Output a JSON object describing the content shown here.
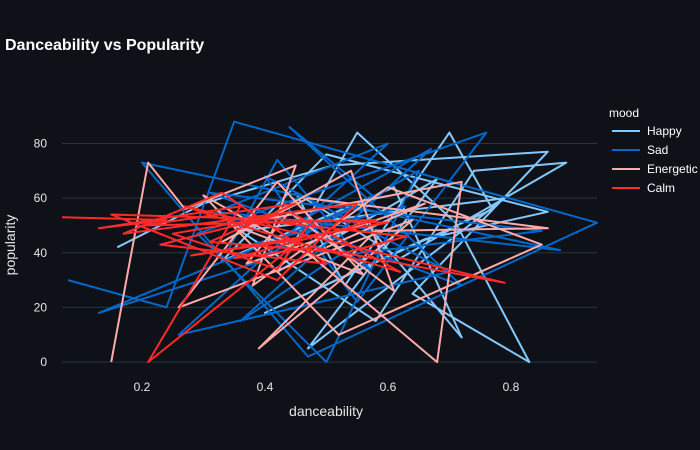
{
  "chart_data": {
    "type": "line",
    "title": "Danceability vs Popularity",
    "xlabel": "danceability",
    "ylabel": "popularity",
    "xlim": [
      0.07,
      0.94
    ],
    "ylim": [
      -4,
      93
    ],
    "x_ticks": [
      "0.2",
      "0.4",
      "0.6",
      "0.8"
    ],
    "y_ticks": [
      "0",
      "20",
      "40",
      "60",
      "80"
    ],
    "grid": true,
    "legend": {
      "title": "mood",
      "placement": "right"
    },
    "series": [
      {
        "name": "Happy",
        "color": "#83c9ff",
        "points": [
          [
            0.16,
            42
          ],
          [
            0.3,
            58
          ],
          [
            0.51,
            72
          ],
          [
            0.86,
            77
          ],
          [
            0.64,
            25
          ],
          [
            0.83,
            0
          ],
          [
            0.71,
            51
          ],
          [
            0.55,
            84
          ],
          [
            0.42,
            33
          ],
          [
            0.68,
            67
          ],
          [
            0.47,
            5
          ],
          [
            0.79,
            60
          ],
          [
            0.36,
            48
          ],
          [
            0.58,
            15
          ],
          [
            0.74,
            70
          ],
          [
            0.89,
            73
          ],
          [
            0.62,
            38
          ],
          [
            0.45,
            62
          ],
          [
            0.53,
            28
          ],
          [
            0.7,
            84
          ],
          [
            0.77,
            56
          ],
          [
            0.4,
            18
          ],
          [
            0.66,
            45
          ],
          [
            0.86,
            55
          ],
          [
            0.5,
            76
          ],
          [
            0.33,
            37
          ],
          [
            0.61,
            64
          ],
          [
            0.72,
            9
          ],
          [
            0.56,
            52
          ],
          [
            0.48,
            41
          ]
        ]
      },
      {
        "name": "Sad",
        "color": "#0068c9",
        "points": [
          [
            0.08,
            30
          ],
          [
            0.24,
            20
          ],
          [
            0.35,
            88
          ],
          [
            0.94,
            51
          ],
          [
            0.47,
            2
          ],
          [
            0.2,
            73
          ],
          [
            0.88,
            41
          ],
          [
            0.32,
            55
          ],
          [
            0.6,
            80
          ],
          [
            0.26,
            10
          ],
          [
            0.7,
            33
          ],
          [
            0.4,
            68
          ],
          [
            0.55,
            22
          ],
          [
            0.76,
            84
          ],
          [
            0.29,
            47
          ],
          [
            0.5,
            0
          ],
          [
            0.65,
            70
          ],
          [
            0.38,
            36
          ],
          [
            0.13,
            18
          ],
          [
            0.58,
            60
          ],
          [
            0.44,
            86
          ],
          [
            0.72,
            28
          ],
          [
            0.31,
            62
          ],
          [
            0.85,
            48
          ],
          [
            0.52,
            39
          ],
          [
            0.36,
            15
          ],
          [
            0.67,
            78
          ],
          [
            0.46,
            52
          ],
          [
            0.57,
            34
          ],
          [
            0.42,
            74
          ],
          [
            0.34,
            41
          ],
          [
            0.63,
            57
          ]
        ]
      },
      {
        "name": "Energetic",
        "color": "#ffabab",
        "points": [
          [
            0.15,
            0
          ],
          [
            0.21,
            73
          ],
          [
            0.27,
            56
          ],
          [
            0.45,
            72
          ],
          [
            0.38,
            28
          ],
          [
            0.6,
            64
          ],
          [
            0.85,
            43
          ],
          [
            0.52,
            10
          ],
          [
            0.3,
            61
          ],
          [
            0.48,
            38
          ],
          [
            0.68,
            0
          ],
          [
            0.72,
            66
          ],
          [
            0.35,
            50
          ],
          [
            0.56,
            32
          ],
          [
            0.42,
            66
          ],
          [
            0.26,
            20
          ],
          [
            0.64,
            52
          ],
          [
            0.39,
            5
          ],
          [
            0.58,
            48
          ],
          [
            0.86,
            49
          ],
          [
            0.47,
            60
          ],
          [
            0.33,
            44
          ],
          [
            0.54,
            70
          ],
          [
            0.61,
            26
          ],
          [
            0.44,
            55
          ],
          [
            0.37,
            36
          ],
          [
            0.66,
            58
          ],
          [
            0.5,
            42
          ]
        ]
      },
      {
        "name": "Calm",
        "color": "#ff2b2b",
        "points": [
          [
            0.07,
            53
          ],
          [
            0.24,
            52
          ],
          [
            0.13,
            49
          ],
          [
            0.36,
            57
          ],
          [
            0.21,
            0
          ],
          [
            0.46,
            45
          ],
          [
            0.28,
            39
          ],
          [
            0.6,
            51
          ],
          [
            0.15,
            54
          ],
          [
            0.42,
            30
          ],
          [
            0.55,
            58
          ],
          [
            0.17,
            47
          ],
          [
            0.33,
            62
          ],
          [
            0.5,
            36
          ],
          [
            0.23,
            43
          ],
          [
            0.44,
            55
          ],
          [
            0.62,
            33
          ],
          [
            0.39,
            48
          ],
          [
            0.27,
            57
          ],
          [
            0.79,
            29
          ],
          [
            0.48,
            42
          ],
          [
            0.35,
            38
          ],
          [
            0.58,
            52
          ],
          [
            0.2,
            50
          ],
          [
            0.45,
            58
          ],
          [
            0.31,
            44
          ],
          [
            0.53,
            40
          ],
          [
            0.63,
            46
          ],
          [
            0.38,
            52
          ],
          [
            0.25,
            47
          ],
          [
            0.42,
            34
          ],
          [
            0.47,
            50
          ]
        ]
      }
    ]
  }
}
